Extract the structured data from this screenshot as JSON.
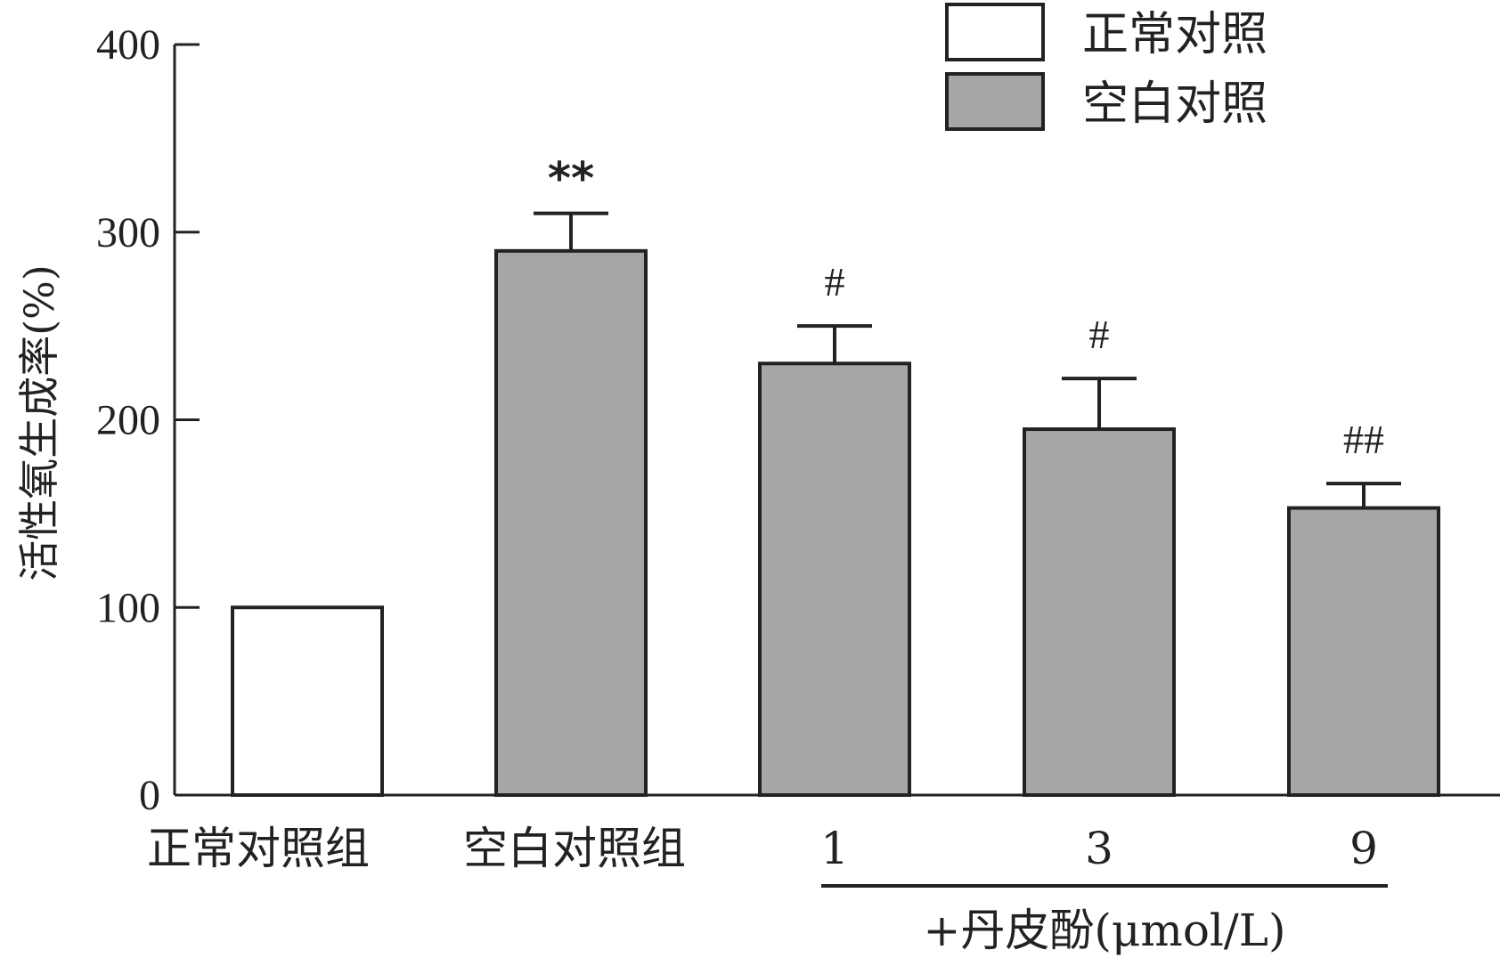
{
  "chart_data": {
    "type": "bar",
    "categories": [
      "正常对照组",
      "空白对照组",
      "1",
      "3",
      "9"
    ],
    "values": [
      100,
      290,
      230,
      195,
      153
    ],
    "errors": [
      0,
      20,
      20,
      27,
      13
    ],
    "annotations": [
      "",
      "**",
      "#",
      "#",
      "##"
    ],
    "fills": [
      "#ffffff",
      "#a6a6a6",
      "#a6a6a6",
      "#a6a6a6",
      "#a6a6a6"
    ],
    "ylabel": "活性氧生成率(%)",
    "xlabel": "",
    "ylim": [
      0,
      400
    ],
    "yticks": [
      "0",
      "100",
      "200",
      "300",
      "400"
    ],
    "group_label": "+丹皮酚(μmol/L)",
    "legend": [
      {
        "label": "正常对照",
        "fill": "#ffffff"
      },
      {
        "label": "空白对照",
        "fill": "#a6a6a6"
      }
    ],
    "legend_position": "top-right",
    "grid": false
  }
}
